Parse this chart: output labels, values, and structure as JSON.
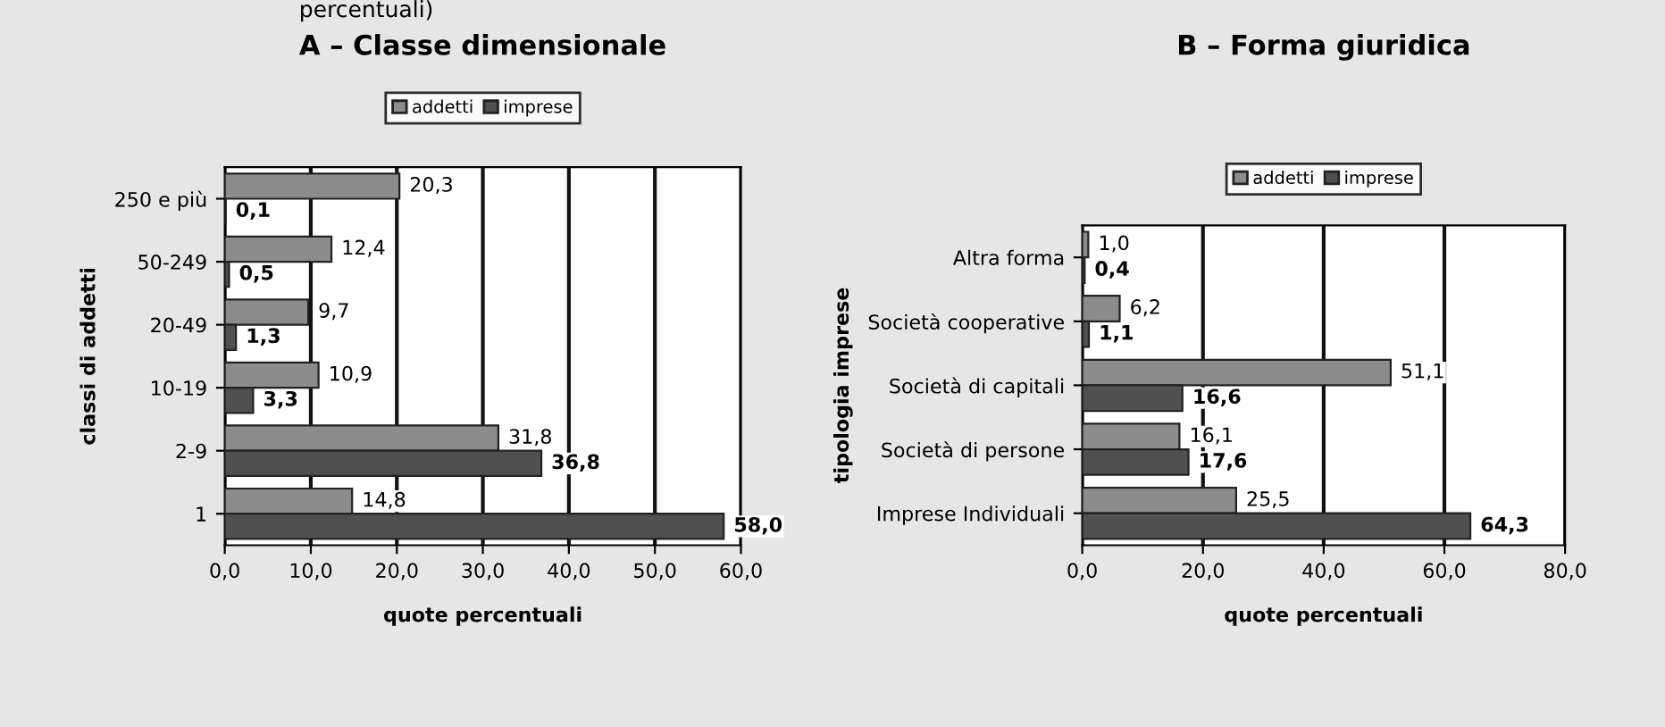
{
  "chart_data": [
    {
      "type": "bar",
      "orientation": "horizontal",
      "title": "A – Classe dimensionale",
      "annotations": [
        "percentuali)"
      ],
      "xlabel": "quote percentuali",
      "ylabel": "classi di addetti",
      "categories": [
        "250 e più",
        "50-249",
        "20-49",
        "10-19",
        "2-9",
        "1"
      ],
      "series": [
        {
          "name": "addetti",
          "color": "#8c8c8c",
          "values": [
            20.3,
            12.4,
            9.7,
            10.9,
            31.8,
            14.8
          ],
          "value_labels": [
            "20,3",
            "12,4",
            "9,7",
            "10,9",
            "31,8",
            "14,8"
          ]
        },
        {
          "name": "imprese",
          "color": "#505050",
          "values": [
            0.1,
            0.5,
            1.3,
            3.3,
            36.8,
            58.0
          ],
          "value_labels": [
            "0,1",
            "0,5",
            "1,3",
            "3,3",
            "36,8",
            "58,0"
          ]
        }
      ],
      "xlim": [
        0,
        60
      ],
      "xticks": [
        {
          "value": 0,
          "label": "0,0"
        },
        {
          "value": 10,
          "label": "10,0"
        },
        {
          "value": 20,
          "label": "20,0"
        },
        {
          "value": 30,
          "label": "30,0"
        },
        {
          "value": 40,
          "label": "40,0"
        },
        {
          "value": 50,
          "label": "50,0"
        },
        {
          "value": 60,
          "label": "60,0"
        }
      ],
      "grid": "x",
      "legend": "top"
    },
    {
      "type": "bar",
      "orientation": "horizontal",
      "title": "B – Forma giuridica",
      "xlabel": "quote percentuali",
      "ylabel": "tipologia imprese",
      "categories": [
        "Altra forma",
        "Società cooperative",
        "Società di capitali",
        "Società di persone",
        "Imprese Individuali"
      ],
      "series": [
        {
          "name": "addetti",
          "color": "#8c8c8c",
          "values": [
            1.0,
            6.2,
            51.1,
            16.1,
            25.5
          ],
          "value_labels": [
            "1,0",
            "6,2",
            "51,1",
            "16,1",
            "25,5"
          ]
        },
        {
          "name": "imprese",
          "color": "#505050",
          "values": [
            0.4,
            1.1,
            16.6,
            17.6,
            64.3
          ],
          "value_labels": [
            "0,4",
            "1,1",
            "16,6",
            "17,6",
            "64,3"
          ]
        }
      ],
      "xlim": [
        0,
        80
      ],
      "xticks": [
        {
          "value": 0,
          "label": "0,0"
        },
        {
          "value": 20,
          "label": "20,0"
        },
        {
          "value": 40,
          "label": "40,0"
        },
        {
          "value": 60,
          "label": "60,0"
        },
        {
          "value": 80,
          "label": "80,0"
        }
      ],
      "grid": "x",
      "legend": "top"
    }
  ]
}
